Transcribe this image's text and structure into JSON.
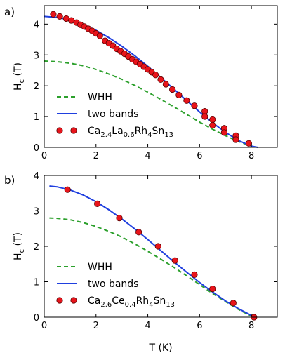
{
  "chart_data": [
    {
      "type": "line",
      "panel_label": "a)",
      "xlabel": "",
      "ylabel_main": "H",
      "ylabel_sub": "c",
      "ylabel_unit": " (T)",
      "xlim": [
        0,
        9
      ],
      "ylim": [
        0,
        4.6
      ],
      "xticks": [
        "0",
        "2",
        "4",
        "6",
        "8"
      ],
      "yticks": [
        "0",
        "1",
        "2",
        "3",
        "4"
      ],
      "grid": false,
      "legend_position": "lower-left",
      "series": [
        {
          "name": "WHH",
          "style": "dashed",
          "color": "#2ca02c",
          "x": [
            0.0,
            0.5,
            1.0,
            1.5,
            2.0,
            2.5,
            3.0,
            3.5,
            4.0,
            4.5,
            5.0,
            5.5,
            6.0,
            6.5,
            7.0,
            7.5,
            8.0,
            8.2
          ],
          "y": [
            2.8,
            2.78,
            2.73,
            2.65,
            2.53,
            2.38,
            2.21,
            2.01,
            1.79,
            1.56,
            1.32,
            1.07,
            0.82,
            0.59,
            0.38,
            0.19,
            0.04,
            0.0
          ]
        },
        {
          "name": "two bands",
          "style": "solid",
          "color": "#1f3fdf",
          "x": [
            0.0,
            0.5,
            1.0,
            1.5,
            2.0,
            2.5,
            3.0,
            3.5,
            4.0,
            4.5,
            5.0,
            5.5,
            6.0,
            6.5,
            7.0,
            7.5,
            8.0,
            8.25
          ],
          "y": [
            4.25,
            4.22,
            4.13,
            3.99,
            3.8,
            3.56,
            3.28,
            2.97,
            2.63,
            2.27,
            1.9,
            1.52,
            1.15,
            0.8,
            0.49,
            0.22,
            0.04,
            0.0
          ]
        },
        {
          "name_parts": [
            {
              "t": "Ca",
              "sub": false
            },
            {
              "t": "2.4",
              "sub": true
            },
            {
              "t": "La",
              "sub": false
            },
            {
              "t": "0.6",
              "sub": true
            },
            {
              "t": "Rh",
              "sub": false
            },
            {
              "t": "4",
              "sub": true
            },
            {
              "t": "Sn",
              "sub": false
            },
            {
              "t": "13",
              "sub": true
            }
          ],
          "style": "markers",
          "color": "#e8141b",
          "x": [
            0.35,
            0.6,
            0.85,
            1.05,
            1.25,
            1.4,
            1.55,
            1.7,
            1.85,
            2.0,
            2.15,
            2.35,
            2.5,
            2.65,
            2.8,
            2.95,
            3.1,
            3.25,
            3.4,
            3.55,
            3.7,
            3.85,
            4.0,
            4.15,
            4.3,
            4.5,
            4.7,
            4.95,
            5.2,
            5.5,
            5.8,
            6.2,
            6.2,
            6.5,
            6.5,
            6.95,
            6.95,
            7.4,
            7.4,
            7.9
          ],
          "y": [
            4.32,
            4.25,
            4.18,
            4.12,
            4.05,
            3.98,
            3.92,
            3.85,
            3.78,
            3.7,
            3.62,
            3.46,
            3.38,
            3.3,
            3.2,
            3.12,
            3.04,
            2.95,
            2.86,
            2.78,
            2.7,
            2.62,
            2.53,
            2.44,
            2.35,
            2.2,
            2.05,
            1.88,
            1.7,
            1.52,
            1.35,
            1.17,
            1.0,
            0.9,
            0.72,
            0.62,
            0.48,
            0.38,
            0.25,
            0.13
          ]
        }
      ]
    },
    {
      "type": "line",
      "panel_label": "b)",
      "xlabel": "T (K)",
      "ylabel_main": "H",
      "ylabel_sub": "c",
      "ylabel_unit": " (T)",
      "xlim": [
        0,
        9
      ],
      "ylim": [
        0,
        4
      ],
      "xticks": [
        "0",
        "2",
        "4",
        "6",
        "8"
      ],
      "yticks": [
        "0",
        "1",
        "2",
        "3",
        "4"
      ],
      "grid": false,
      "legend_position": "lower-left",
      "series": [
        {
          "name": "WHH",
          "style": "dashed",
          "color": "#2ca02c",
          "x": [
            0.2,
            0.5,
            1.0,
            1.5,
            2.0,
            2.5,
            3.0,
            3.5,
            4.0,
            4.5,
            5.0,
            5.5,
            6.0,
            6.5,
            7.0,
            7.5,
            8.0,
            8.1
          ],
          "y": [
            2.8,
            2.79,
            2.75,
            2.67,
            2.56,
            2.42,
            2.26,
            2.07,
            1.86,
            1.64,
            1.41,
            1.17,
            0.92,
            0.67,
            0.44,
            0.22,
            0.03,
            0.0
          ]
        },
        {
          "name": "two bands",
          "style": "solid",
          "color": "#1f3fdf",
          "x": [
            0.2,
            0.5,
            1.0,
            1.5,
            2.0,
            2.5,
            3.0,
            3.5,
            4.0,
            4.5,
            5.0,
            5.5,
            6.0,
            6.5,
            7.0,
            7.5,
            8.0,
            8.1
          ],
          "y": [
            3.7,
            3.68,
            3.59,
            3.45,
            3.26,
            3.03,
            2.77,
            2.49,
            2.19,
            1.88,
            1.57,
            1.27,
            0.98,
            0.71,
            0.46,
            0.24,
            0.05,
            0.0
          ]
        },
        {
          "name_parts": [
            {
              "t": "Ca",
              "sub": false
            },
            {
              "t": "2.6",
              "sub": true
            },
            {
              "t": "Ce",
              "sub": false
            },
            {
              "t": "0.4",
              "sub": true
            },
            {
              "t": "Rh",
              "sub": false
            },
            {
              "t": "4",
              "sub": true
            },
            {
              "t": "Sn",
              "sub": false
            },
            {
              "t": "13",
              "sub": true
            }
          ],
          "style": "markers",
          "color": "#e8141b",
          "x": [
            0.9,
            2.05,
            2.9,
            3.65,
            4.4,
            5.05,
            5.8,
            6.5,
            7.3,
            8.1
          ],
          "y": [
            3.6,
            3.2,
            2.8,
            2.4,
            2.0,
            1.6,
            1.2,
            0.8,
            0.4,
            0.0
          ]
        }
      ]
    }
  ]
}
